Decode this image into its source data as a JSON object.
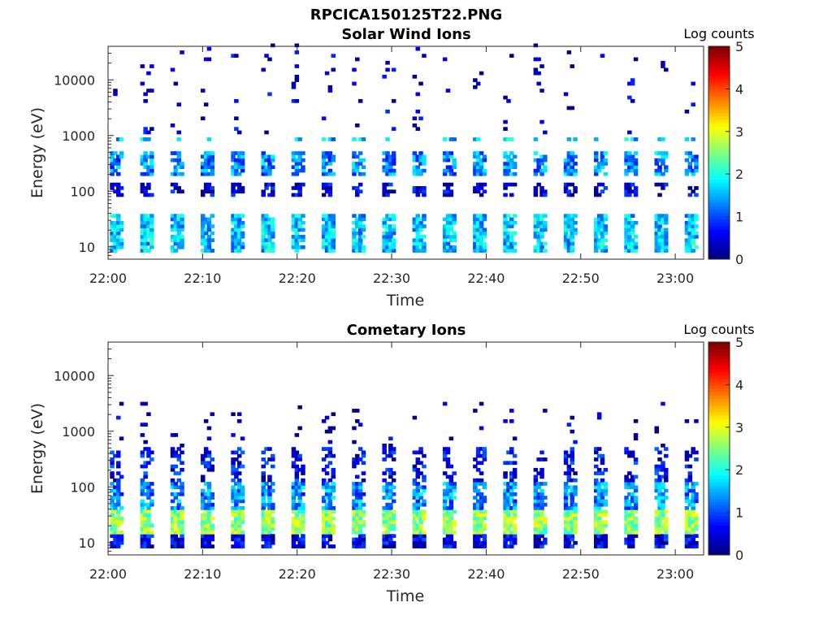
{
  "figure": {
    "filename": "RPCICA150125T22.PNG"
  },
  "chart_data": [
    {
      "type": "heatmap",
      "title": "Solar Wind Ions",
      "xlabel": "Time",
      "ylabel": "Energy (eV)",
      "yscale": "log",
      "ylim": [
        6,
        40000
      ],
      "xlim": [
        "22:00",
        "23:03"
      ],
      "x_ticks": [
        "22:00",
        "22:10",
        "22:20",
        "22:30",
        "22:40",
        "22:50",
        "23:00"
      ],
      "y_ticks": [
        "10",
        "100",
        "1000",
        "10000"
      ],
      "colorbar": {
        "label": "Log counts",
        "range": [
          0,
          5
        ],
        "ticks": [
          "0",
          "1",
          "2",
          "3",
          "4",
          "5"
        ],
        "colormap": "jet"
      },
      "scan_period_minutes": 3.2,
      "bands": [
        {
          "e_low": 8,
          "e_high": 35,
          "log_counts": 1.6,
          "fill": 0.9
        },
        {
          "e_low": 70,
          "e_high": 130,
          "log_counts": 0.4,
          "fill": 0.6
        },
        {
          "e_low": 180,
          "e_high": 450,
          "log_counts": 1.3,
          "fill": 0.75
        },
        {
          "e_low": 700,
          "e_high": 900,
          "log_counts": 1.6,
          "fill": 0.55
        },
        {
          "e_low": 1000,
          "e_high": 40000,
          "log_counts": 0.3,
          "fill": 0.06
        }
      ]
    },
    {
      "type": "heatmap",
      "title": "Cometary Ions",
      "xlabel": "Time",
      "ylabel": "Energy (eV)",
      "yscale": "log",
      "ylim": [
        6,
        40000
      ],
      "xlim": [
        "22:00",
        "23:03"
      ],
      "x_ticks": [
        "22:00",
        "22:10",
        "22:20",
        "22:30",
        "22:40",
        "22:50",
        "23:00"
      ],
      "y_ticks": [
        "10",
        "100",
        "1000",
        "10000"
      ],
      "colorbar": {
        "label": "Log counts",
        "range": [
          0,
          5
        ],
        "ticks": [
          "0",
          "1",
          "2",
          "3",
          "4",
          "5"
        ],
        "colormap": "jet"
      },
      "scan_period_minutes": 3.2,
      "bands": [
        {
          "e_low": 7,
          "e_high": 13,
          "log_counts": 0.5,
          "fill": 0.9
        },
        {
          "e_low": 13,
          "e_high": 35,
          "log_counts": 2.6,
          "fill": 0.95
        },
        {
          "e_low": 35,
          "e_high": 120,
          "log_counts": 1.3,
          "fill": 0.8
        },
        {
          "e_low": 120,
          "e_high": 500,
          "log_counts": 0.6,
          "fill": 0.45
        },
        {
          "e_low": 500,
          "e_high": 3000,
          "log_counts": 0.2,
          "fill": 0.08
        }
      ]
    }
  ]
}
